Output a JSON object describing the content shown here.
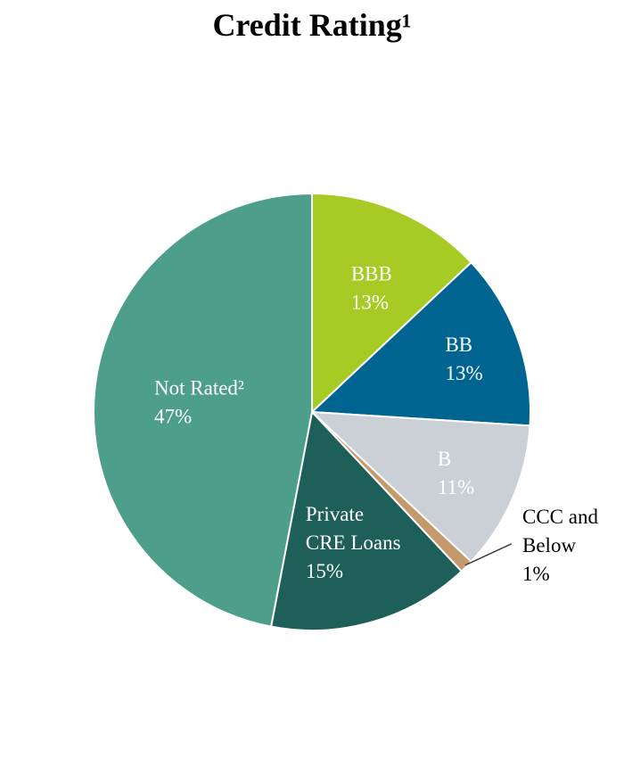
{
  "chart_data": {
    "type": "pie",
    "title": "Credit Rating¹",
    "slices": [
      {
        "label": [
          "BBB",
          "13%"
        ],
        "value": 13,
        "color": "#a6cb24",
        "label_color": "#ffffff"
      },
      {
        "label": [
          "BB",
          "13%"
        ],
        "value": 13,
        "color": "#006491",
        "label_color": "#ffffff"
      },
      {
        "label": [
          "B",
          "11%"
        ],
        "value": 11,
        "color": "#cbcfd6",
        "label_color": "#ffffff"
      },
      {
        "label": [
          "CCC and",
          "Below",
          "1%"
        ],
        "value": 1,
        "color": "#c49a6c",
        "label_color": "#000000",
        "label_outside": true
      },
      {
        "label": [
          "Private",
          "CRE Loans",
          "15%"
        ],
        "value": 15,
        "color": "#1e5f5a",
        "label_color": "#ffffff"
      },
      {
        "label": [
          "Not Rated²",
          "47%"
        ],
        "value": 47,
        "color": "#4d9f8b",
        "label_color": "#ffffff"
      }
    ],
    "start": "12 o'clock",
    "direction": "clockwise"
  }
}
